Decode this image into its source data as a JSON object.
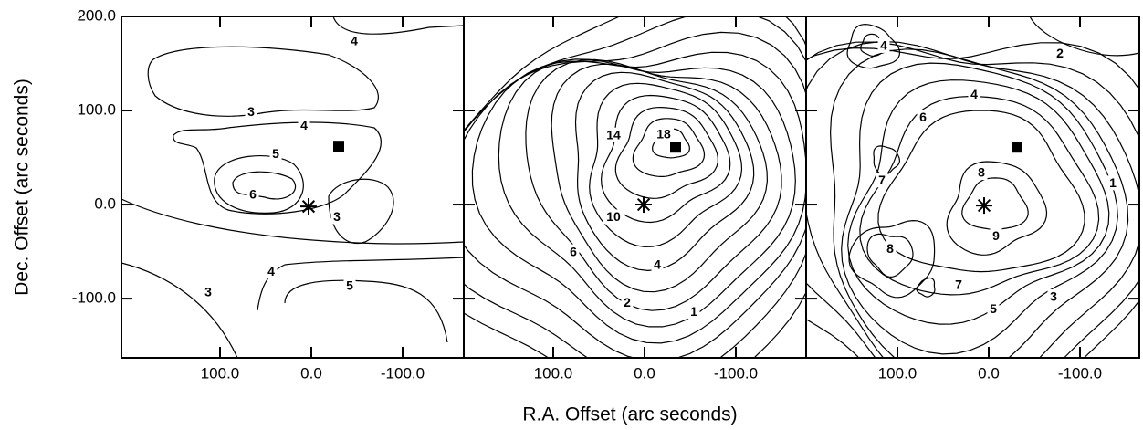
{
  "chart_data": [
    {
      "type": "contour",
      "ylabel": "Dec. Offset (arc seconds)",
      "xlim": [
        208,
        -167
      ],
      "ylim": [
        -163,
        200
      ],
      "xticks": [
        {
          "value": 100,
          "label": "100.0"
        },
        {
          "value": 0,
          "label": "0.0"
        },
        {
          "value": -100,
          "label": "-100.0"
        }
      ],
      "yticks": [
        {
          "value": -100,
          "label": "-100.0"
        },
        {
          "value": 0,
          "label": "0.0"
        },
        {
          "value": 100,
          "label": "100.0"
        },
        {
          "value": 200,
          "label": "200.0"
        }
      ],
      "markers": [
        {
          "symbol": "asterisk",
          "x": 3,
          "y": -2
        },
        {
          "symbol": "square",
          "x": -30,
          "y": 62
        }
      ],
      "contour_labels": [
        {
          "level": 4,
          "x": -47,
          "y": 174
        },
        {
          "level": 3,
          "x": 66,
          "y": 99
        },
        {
          "level": 4,
          "x": 8,
          "y": 84
        },
        {
          "level": 5,
          "x": 39,
          "y": 54
        },
        {
          "level": 6,
          "x": 64,
          "y": 11
        },
        {
          "level": 3,
          "x": -28,
          "y": -13
        },
        {
          "level": 4,
          "x": 44,
          "y": -71
        },
        {
          "level": 5,
          "x": -42,
          "y": -86
        },
        {
          "level": 3,
          "x": 113,
          "y": -93
        }
      ]
    },
    {
      "type": "contour",
      "xlabel": "R.A. Offset (arc seconds)",
      "xlim": [
        198,
        -177
      ],
      "ylim": [
        -163,
        200
      ],
      "xticks": [
        {
          "value": 100,
          "label": "100.0"
        },
        {
          "value": 0,
          "label": "0.0"
        },
        {
          "value": -100,
          "label": "-100.0"
        }
      ],
      "markers": [
        {
          "symbol": "asterisk",
          "x": 1,
          "y": 0
        },
        {
          "symbol": "square",
          "x": -34,
          "y": 61
        }
      ],
      "contour_labels": [
        {
          "level": 14,
          "x": 34,
          "y": 74
        },
        {
          "level": 18,
          "x": -21,
          "y": 75
        },
        {
          "level": 10,
          "x": 34,
          "y": -13
        },
        {
          "level": 6,
          "x": 78,
          "y": -50
        },
        {
          "level": 4,
          "x": -14,
          "y": -64
        },
        {
          "level": 2,
          "x": 19,
          "y": -104
        },
        {
          "level": 1,
          "x": -54,
          "y": -114
        }
      ]
    },
    {
      "type": "contour",
      "xlim": [
        200,
        -165
      ],
      "ylim": [
        -163,
        200
      ],
      "xticks": [
        {
          "value": 100,
          "label": "100.0"
        },
        {
          "value": 0,
          "label": "0.0"
        },
        {
          "value": -100,
          "label": "-100.0"
        }
      ],
      "markers": [
        {
          "symbol": "asterisk",
          "x": 5,
          "y": -1
        },
        {
          "symbol": "square",
          "x": -31,
          "y": 61
        }
      ],
      "contour_labels": [
        {
          "level": 4,
          "x": 115,
          "y": 169
        },
        {
          "level": 2,
          "x": -78,
          "y": 161
        },
        {
          "level": 4,
          "x": 16,
          "y": 117
        },
        {
          "level": 6,
          "x": 72,
          "y": 93
        },
        {
          "level": 7,
          "x": 117,
          "y": 26
        },
        {
          "level": 8,
          "x": 8,
          "y": 34
        },
        {
          "level": 1,
          "x": -136,
          "y": 23
        },
        {
          "level": 9,
          "x": -8,
          "y": -33
        },
        {
          "level": 8,
          "x": 108,
          "y": -47
        },
        {
          "level": 7,
          "x": 33,
          "y": -85
        },
        {
          "level": 3,
          "x": -71,
          "y": -98
        },
        {
          "level": 5,
          "x": -5,
          "y": -111
        }
      ]
    }
  ]
}
